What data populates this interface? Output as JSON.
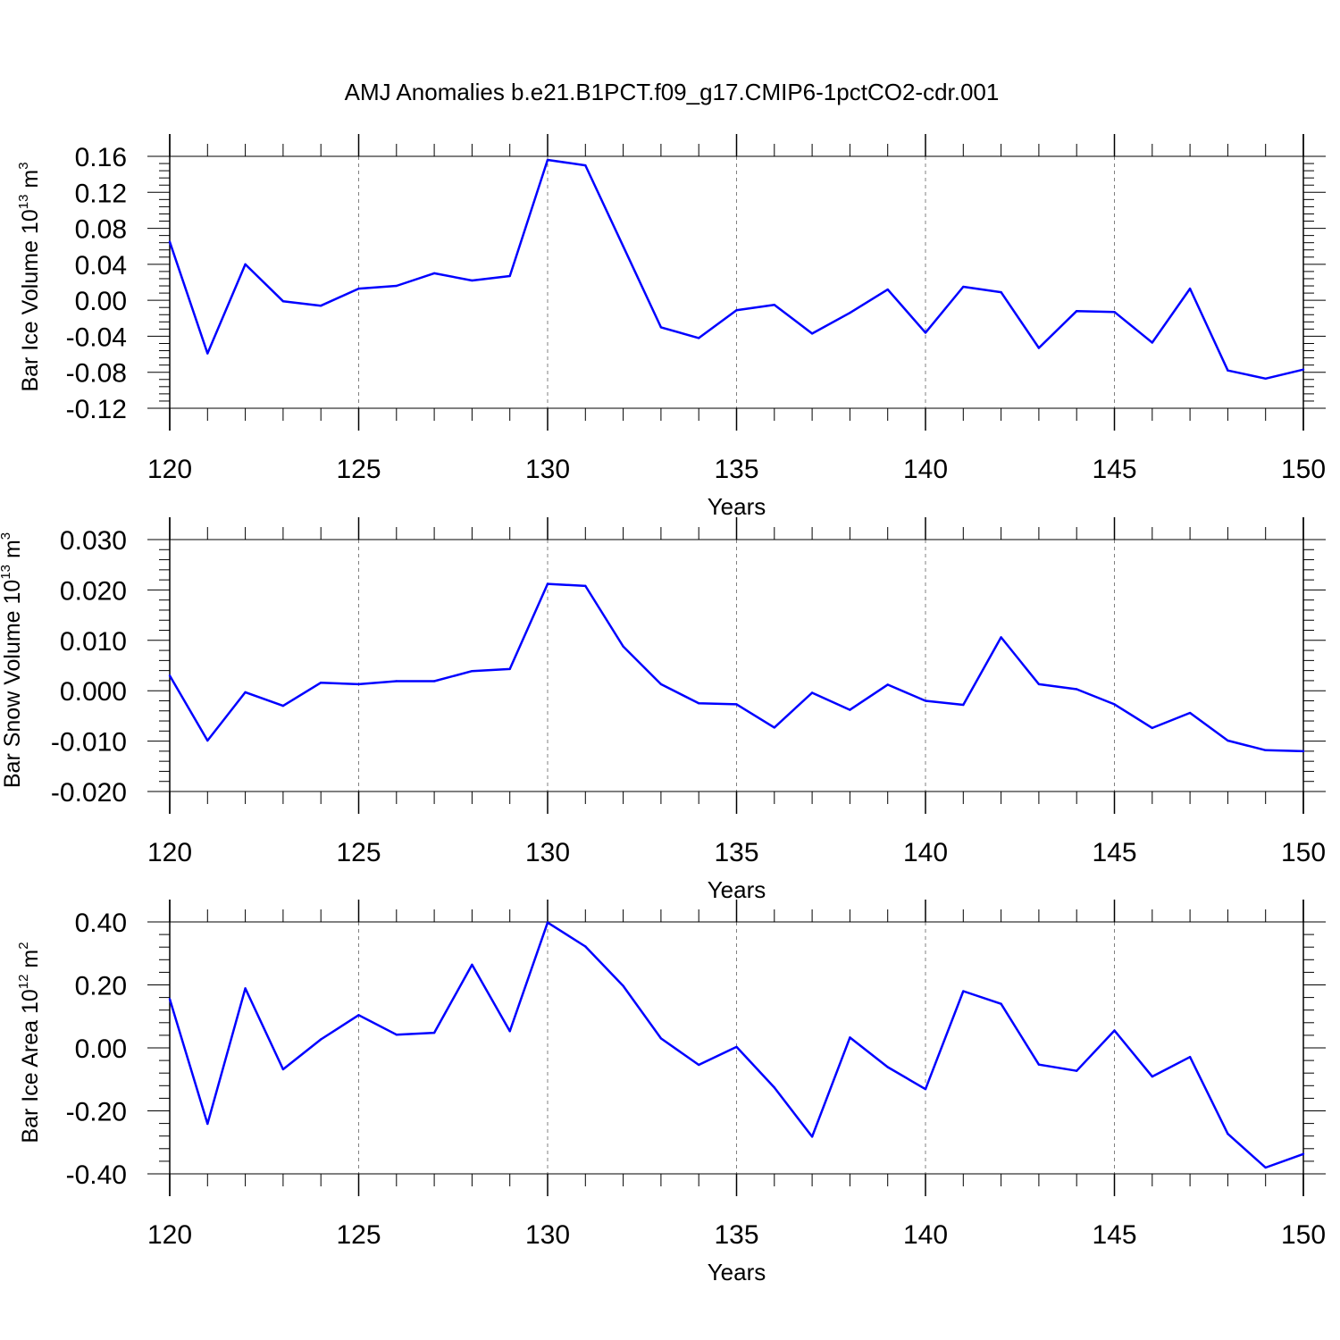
{
  "title": "AMJ Anomalies b.e21.B1PCT.f09_g17.CMIP6-1pctCO2-cdr.001",
  "colors": {
    "line": "#0000ff",
    "axis": "#000000",
    "grid": "#808080"
  },
  "chart_data": [
    {
      "type": "line",
      "ylabel": {
        "text": "Bar Ice Volume 10",
        "exp": "13",
        "unit": " m",
        "unit_exp": "3"
      },
      "xlabel": "Years",
      "xlim": [
        120,
        150
      ],
      "ylim": [
        -0.12,
        0.16
      ],
      "x_ticks": [
        120,
        125,
        130,
        135,
        140,
        145,
        150
      ],
      "x_tick_labels": [
        "120",
        "125",
        "130",
        "135",
        "140",
        "145",
        "150"
      ],
      "y_ticks": [
        -0.12,
        -0.08,
        -0.04,
        0.0,
        0.04,
        0.08,
        0.12,
        0.16
      ],
      "y_tick_labels": [
        "-0.12",
        "-0.08",
        "-0.04",
        "0.00",
        "0.04",
        "0.08",
        "0.12",
        "0.16"
      ],
      "grid": "vertical-dashed",
      "x": [
        120,
        121,
        122,
        123,
        124,
        125,
        126,
        127,
        128,
        129,
        130,
        131,
        132,
        133,
        134,
        135,
        136,
        137,
        138,
        139,
        140,
        141,
        142,
        143,
        144,
        145,
        146,
        147,
        148,
        149,
        150
      ],
      "values": [
        0.065,
        -0.059,
        0.04,
        -0.001,
        -0.006,
        0.013,
        0.016,
        0.03,
        0.022,
        0.027,
        0.156,
        0.15,
        0.06,
        -0.03,
        -0.042,
        -0.011,
        -0.005,
        -0.037,
        -0.014,
        0.012,
        -0.036,
        0.015,
        0.009,
        -0.053,
        -0.012,
        -0.013,
        -0.047,
        0.013,
        -0.078,
        -0.087,
        -0.077
      ]
    },
    {
      "type": "line",
      "ylabel": {
        "text": "Bar Snow Volume 10",
        "exp": "13",
        "unit": " m",
        "unit_exp": "3"
      },
      "xlabel": "Years",
      "xlim": [
        120,
        150
      ],
      "ylim": [
        -0.02,
        0.03
      ],
      "x_ticks": [
        120,
        125,
        130,
        135,
        140,
        145,
        150
      ],
      "x_tick_labels": [
        "120",
        "125",
        "130",
        "135",
        "140",
        "145",
        "150"
      ],
      "y_ticks": [
        -0.02,
        -0.01,
        0.0,
        0.01,
        0.02,
        0.03
      ],
      "y_tick_labels": [
        "-0.020",
        "-0.010",
        "0.000",
        "0.010",
        "0.020",
        "0.030"
      ],
      "grid": "vertical-dashed",
      "x": [
        120,
        121,
        122,
        123,
        124,
        125,
        126,
        127,
        128,
        129,
        130,
        131,
        132,
        133,
        134,
        135,
        136,
        137,
        138,
        139,
        140,
        141,
        142,
        143,
        144,
        145,
        146,
        147,
        148,
        149,
        150
      ],
      "values": [
        0.003,
        -0.0099,
        -0.0003,
        -0.003,
        0.0016,
        0.0013,
        0.0019,
        0.0019,
        0.0039,
        0.0043,
        0.0212,
        0.0208,
        0.0088,
        0.0013,
        -0.0025,
        -0.0027,
        -0.0073,
        -0.0004,
        -0.0038,
        0.0012,
        -0.002,
        -0.0028,
        0.0106,
        0.0013,
        0.0003,
        -0.0027,
        -0.0074,
        -0.0044,
        -0.0099,
        -0.0118,
        -0.012
      ]
    },
    {
      "type": "line",
      "ylabel": {
        "text": "Bar Ice Area 10",
        "exp": "12",
        "unit": " m",
        "unit_exp": "2"
      },
      "xlabel": "Years",
      "xlim": [
        120,
        150
      ],
      "ylim": [
        -0.4,
        0.4
      ],
      "x_ticks": [
        120,
        125,
        130,
        135,
        140,
        145,
        150
      ],
      "x_tick_labels": [
        "120",
        "125",
        "130",
        "135",
        "140",
        "145",
        "150"
      ],
      "y_ticks": [
        -0.4,
        -0.2,
        0.0,
        0.2,
        0.4
      ],
      "y_tick_labels": [
        "-0.40",
        "-0.20",
        "0.00",
        "0.20",
        "0.40"
      ],
      "grid": "vertical-dashed",
      "x": [
        120,
        121,
        122,
        123,
        124,
        125,
        126,
        127,
        128,
        129,
        130,
        131,
        132,
        133,
        134,
        135,
        136,
        137,
        138,
        139,
        140,
        141,
        142,
        143,
        144,
        145,
        146,
        147,
        148,
        149,
        150
      ],
      "values": [
        0.155,
        -0.241,
        0.189,
        -0.068,
        0.027,
        0.104,
        0.042,
        0.048,
        0.264,
        0.053,
        0.398,
        0.322,
        0.197,
        0.03,
        -0.054,
        0.003,
        -0.126,
        -0.282,
        0.033,
        -0.061,
        -0.131,
        0.18,
        0.14,
        -0.053,
        -0.073,
        0.055,
        -0.091,
        -0.029,
        -0.273,
        -0.38,
        -0.337
      ]
    }
  ]
}
